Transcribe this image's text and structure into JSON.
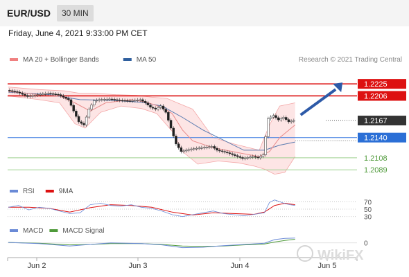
{
  "header": {
    "symbol": "EUR/USD",
    "timeframe": "30 MIN",
    "datetime": "Friday, June 4, 2021 9:33:00 PM CET"
  },
  "watermark": "WikiFX",
  "chart_data": [
    {
      "type": "line",
      "panel": "price",
      "legend": [
        {
          "name": "MA 20 + Bollinger Bands",
          "color": "#f08080"
        },
        {
          "name": "MA 50",
          "color": "#2f5f9e"
        }
      ],
      "credit": "Research © 2021 Trading Central",
      "ylim": [
        1.2075,
        1.2235
      ],
      "x_ticks": [
        "Jun 2",
        "Jun 3",
        "Jun 4",
        "Jun 5"
      ],
      "levels": [
        {
          "value": 1.2225,
          "label": "1.2225",
          "kind": "resistance",
          "color": "#dd1111"
        },
        {
          "value": 1.2206,
          "label": "1.2206",
          "kind": "resistance",
          "color": "#dd1111"
        },
        {
          "value": 1.2167,
          "label": "1.2167",
          "kind": "last",
          "color": "#333333"
        },
        {
          "value": 1.214,
          "label": "1.2140",
          "kind": "pivot",
          "color": "#2b6fd6"
        },
        {
          "value": 1.2108,
          "label": "1.2108",
          "kind": "support",
          "color": "#4f9a3a"
        },
        {
          "value": 1.2089,
          "label": "1.2089",
          "kind": "support",
          "color": "#4f9a3a"
        }
      ],
      "price_path": [
        [
          0,
          1.2215
        ],
        [
          2,
          1.2212
        ],
        [
          4,
          1.2205
        ],
        [
          6,
          1.2208
        ],
        [
          8,
          1.221
        ],
        [
          10,
          1.2208
        ],
        [
          12,
          1.22
        ],
        [
          13,
          1.2182
        ],
        [
          14,
          1.2165
        ],
        [
          15,
          1.216
        ],
        [
          16,
          1.2185
        ],
        [
          17,
          1.2198
        ],
        [
          18,
          1.22
        ],
        [
          20,
          1.2201
        ],
        [
          22,
          1.2199
        ],
        [
          24,
          1.2198
        ],
        [
          26,
          1.22
        ],
        [
          27,
          1.2195
        ],
        [
          28,
          1.2188
        ],
        [
          29,
          1.2185
        ],
        [
          30,
          1.219
        ],
        [
          31,
          1.218
        ],
        [
          32,
          1.2155
        ],
        [
          33,
          1.213
        ],
        [
          34,
          1.2118
        ],
        [
          36,
          1.2122
        ],
        [
          38,
          1.2124
        ],
        [
          40,
          1.2126
        ],
        [
          41,
          1.212
        ],
        [
          43,
          1.2116
        ],
        [
          45,
          1.211
        ],
        [
          46,
          1.2107
        ],
        [
          48,
          1.211
        ],
        [
          49,
          1.2108
        ],
        [
          50,
          1.2113
        ],
        [
          51,
          1.217
        ],
        [
          52,
          1.2175
        ],
        [
          53,
          1.2168
        ],
        [
          54,
          1.2172
        ],
        [
          55,
          1.2165
        ],
        [
          56,
          1.2167
        ]
      ],
      "ma20_path": [
        [
          0,
          1.2213
        ],
        [
          6,
          1.2208
        ],
        [
          10,
          1.2206
        ],
        [
          13,
          1.2195
        ],
        [
          16,
          1.2182
        ],
        [
          19,
          1.2195
        ],
        [
          24,
          1.22
        ],
        [
          27,
          1.2196
        ],
        [
          30,
          1.2188
        ],
        [
          32,
          1.2178
        ],
        [
          34,
          1.2152
        ],
        [
          36,
          1.2135
        ],
        [
          40,
          1.2124
        ],
        [
          45,
          1.2116
        ],
        [
          49,
          1.211
        ],
        [
          51,
          1.2118
        ],
        [
          53,
          1.214
        ],
        [
          56,
          1.216
        ]
      ],
      "ma50_path": [
        [
          0,
          1.2212
        ],
        [
          8,
          1.2208
        ],
        [
          14,
          1.22
        ],
        [
          20,
          1.2199
        ],
        [
          26,
          1.2196
        ],
        [
          30,
          1.219
        ],
        [
          34,
          1.2172
        ],
        [
          38,
          1.2152
        ],
        [
          42,
          1.2136
        ],
        [
          46,
          1.212
        ],
        [
          50,
          1.212
        ],
        [
          53,
          1.2128
        ],
        [
          56,
          1.2133
        ]
      ],
      "bb_upper_path": [
        [
          0,
          1.222
        ],
        [
          6,
          1.2216
        ],
        [
          11,
          1.2214
        ],
        [
          14,
          1.221
        ],
        [
          17,
          1.221
        ],
        [
          21,
          1.2208
        ],
        [
          25,
          1.2207
        ],
        [
          28,
          1.2204
        ],
        [
          31,
          1.2202
        ],
        [
          33,
          1.2195
        ],
        [
          36,
          1.2185
        ],
        [
          40,
          1.214
        ],
        [
          44,
          1.213
        ],
        [
          49,
          1.212
        ],
        [
          51,
          1.216
        ],
        [
          53,
          1.219
        ],
        [
          56,
          1.2195
        ]
      ],
      "bb_lower_path": [
        [
          0,
          1.2206
        ],
        [
          6,
          1.22
        ],
        [
          10,
          1.2195
        ],
        [
          13,
          1.2162
        ],
        [
          15,
          1.2155
        ],
        [
          18,
          1.218
        ],
        [
          22,
          1.219
        ],
        [
          26,
          1.2186
        ],
        [
          29,
          1.2178
        ],
        [
          32,
          1.215
        ],
        [
          34,
          1.2118
        ],
        [
          37,
          1.2098
        ],
        [
          41,
          1.2103
        ],
        [
          45,
          1.21
        ],
        [
          48,
          1.2095
        ],
        [
          50,
          1.209
        ],
        [
          52,
          1.2082
        ],
        [
          54,
          1.2085
        ],
        [
          56,
          1.211
        ]
      ],
      "projection": {
        "from": [
          56,
          1.2167
        ],
        "to": [
          65,
          1.2225
        ]
      }
    },
    {
      "type": "line",
      "panel": "rsi",
      "legend": [
        {
          "name": "RSI",
          "color": "#6a8ad6"
        },
        {
          "name": "9MA",
          "color": "#dd1111"
        }
      ],
      "ylim": [
        20,
        80
      ],
      "levels": [
        {
          "value": 70,
          "label": "70"
        },
        {
          "value": 50,
          "label": "50"
        },
        {
          "value": 30,
          "label": "30"
        }
      ],
      "rsi_path": [
        [
          0,
          55
        ],
        [
          2,
          60
        ],
        [
          4,
          48
        ],
        [
          6,
          55
        ],
        [
          8,
          52
        ],
        [
          10,
          45
        ],
        [
          12,
          38
        ],
        [
          14,
          40
        ],
        [
          16,
          62
        ],
        [
          18,
          66
        ],
        [
          20,
          60
        ],
        [
          22,
          58
        ],
        [
          24,
          62
        ],
        [
          26,
          55
        ],
        [
          28,
          52
        ],
        [
          30,
          45
        ],
        [
          32,
          35
        ],
        [
          34,
          30
        ],
        [
          36,
          35
        ],
        [
          38,
          40
        ],
        [
          40,
          45
        ],
        [
          42,
          38
        ],
        [
          44,
          35
        ],
        [
          46,
          32
        ],
        [
          48,
          36
        ],
        [
          50,
          40
        ],
        [
          51,
          68
        ],
        [
          52,
          75
        ],
        [
          53,
          70
        ],
        [
          54,
          65
        ],
        [
          55,
          62
        ],
        [
          56,
          60
        ]
      ],
      "ma9_path": [
        [
          0,
          55
        ],
        [
          4,
          55
        ],
        [
          8,
          52
        ],
        [
          12,
          42
        ],
        [
          16,
          54
        ],
        [
          20,
          62
        ],
        [
          24,
          60
        ],
        [
          28,
          55
        ],
        [
          32,
          42
        ],
        [
          36,
          34
        ],
        [
          40,
          40
        ],
        [
          44,
          38
        ],
        [
          48,
          36
        ],
        [
          50,
          42
        ],
        [
          52,
          60
        ],
        [
          54,
          66
        ],
        [
          56,
          62
        ]
      ]
    },
    {
      "type": "line",
      "panel": "macd",
      "legend": [
        {
          "name": "MACD",
          "color": "#6a8ad6"
        },
        {
          "name": "MACD Signal",
          "color": "#4f9a3a"
        }
      ],
      "ylim": [
        -0.003,
        0.0015
      ],
      "levels": [
        {
          "value": 0,
          "label": "0"
        }
      ],
      "macd_path": [
        [
          0,
          0.0001
        ],
        [
          6,
          -0.0002
        ],
        [
          12,
          -0.0008
        ],
        [
          16,
          -0.0004
        ],
        [
          20,
          0.0
        ],
        [
          26,
          -0.0002
        ],
        [
          30,
          -0.0005
        ],
        [
          34,
          -0.0012
        ],
        [
          38,
          -0.0011
        ],
        [
          42,
          -0.0007
        ],
        [
          46,
          -0.0004
        ],
        [
          50,
          -0.0001
        ],
        [
          52,
          0.0008
        ],
        [
          54,
          0.0011
        ],
        [
          56,
          0.0012
        ]
      ],
      "signal_path": [
        [
          0,
          0.0001
        ],
        [
          6,
          -0.0001
        ],
        [
          12,
          -0.0005
        ],
        [
          16,
          -0.0004
        ],
        [
          20,
          -0.0002
        ],
        [
          26,
          -0.0002
        ],
        [
          30,
          -0.0004
        ],
        [
          34,
          -0.0008
        ],
        [
          38,
          -0.0009
        ],
        [
          42,
          -0.0008
        ],
        [
          46,
          -0.0005
        ],
        [
          50,
          -0.0003
        ],
        [
          52,
          0.0002
        ],
        [
          54,
          0.0006
        ],
        [
          56,
          0.0009
        ]
      ]
    }
  ]
}
